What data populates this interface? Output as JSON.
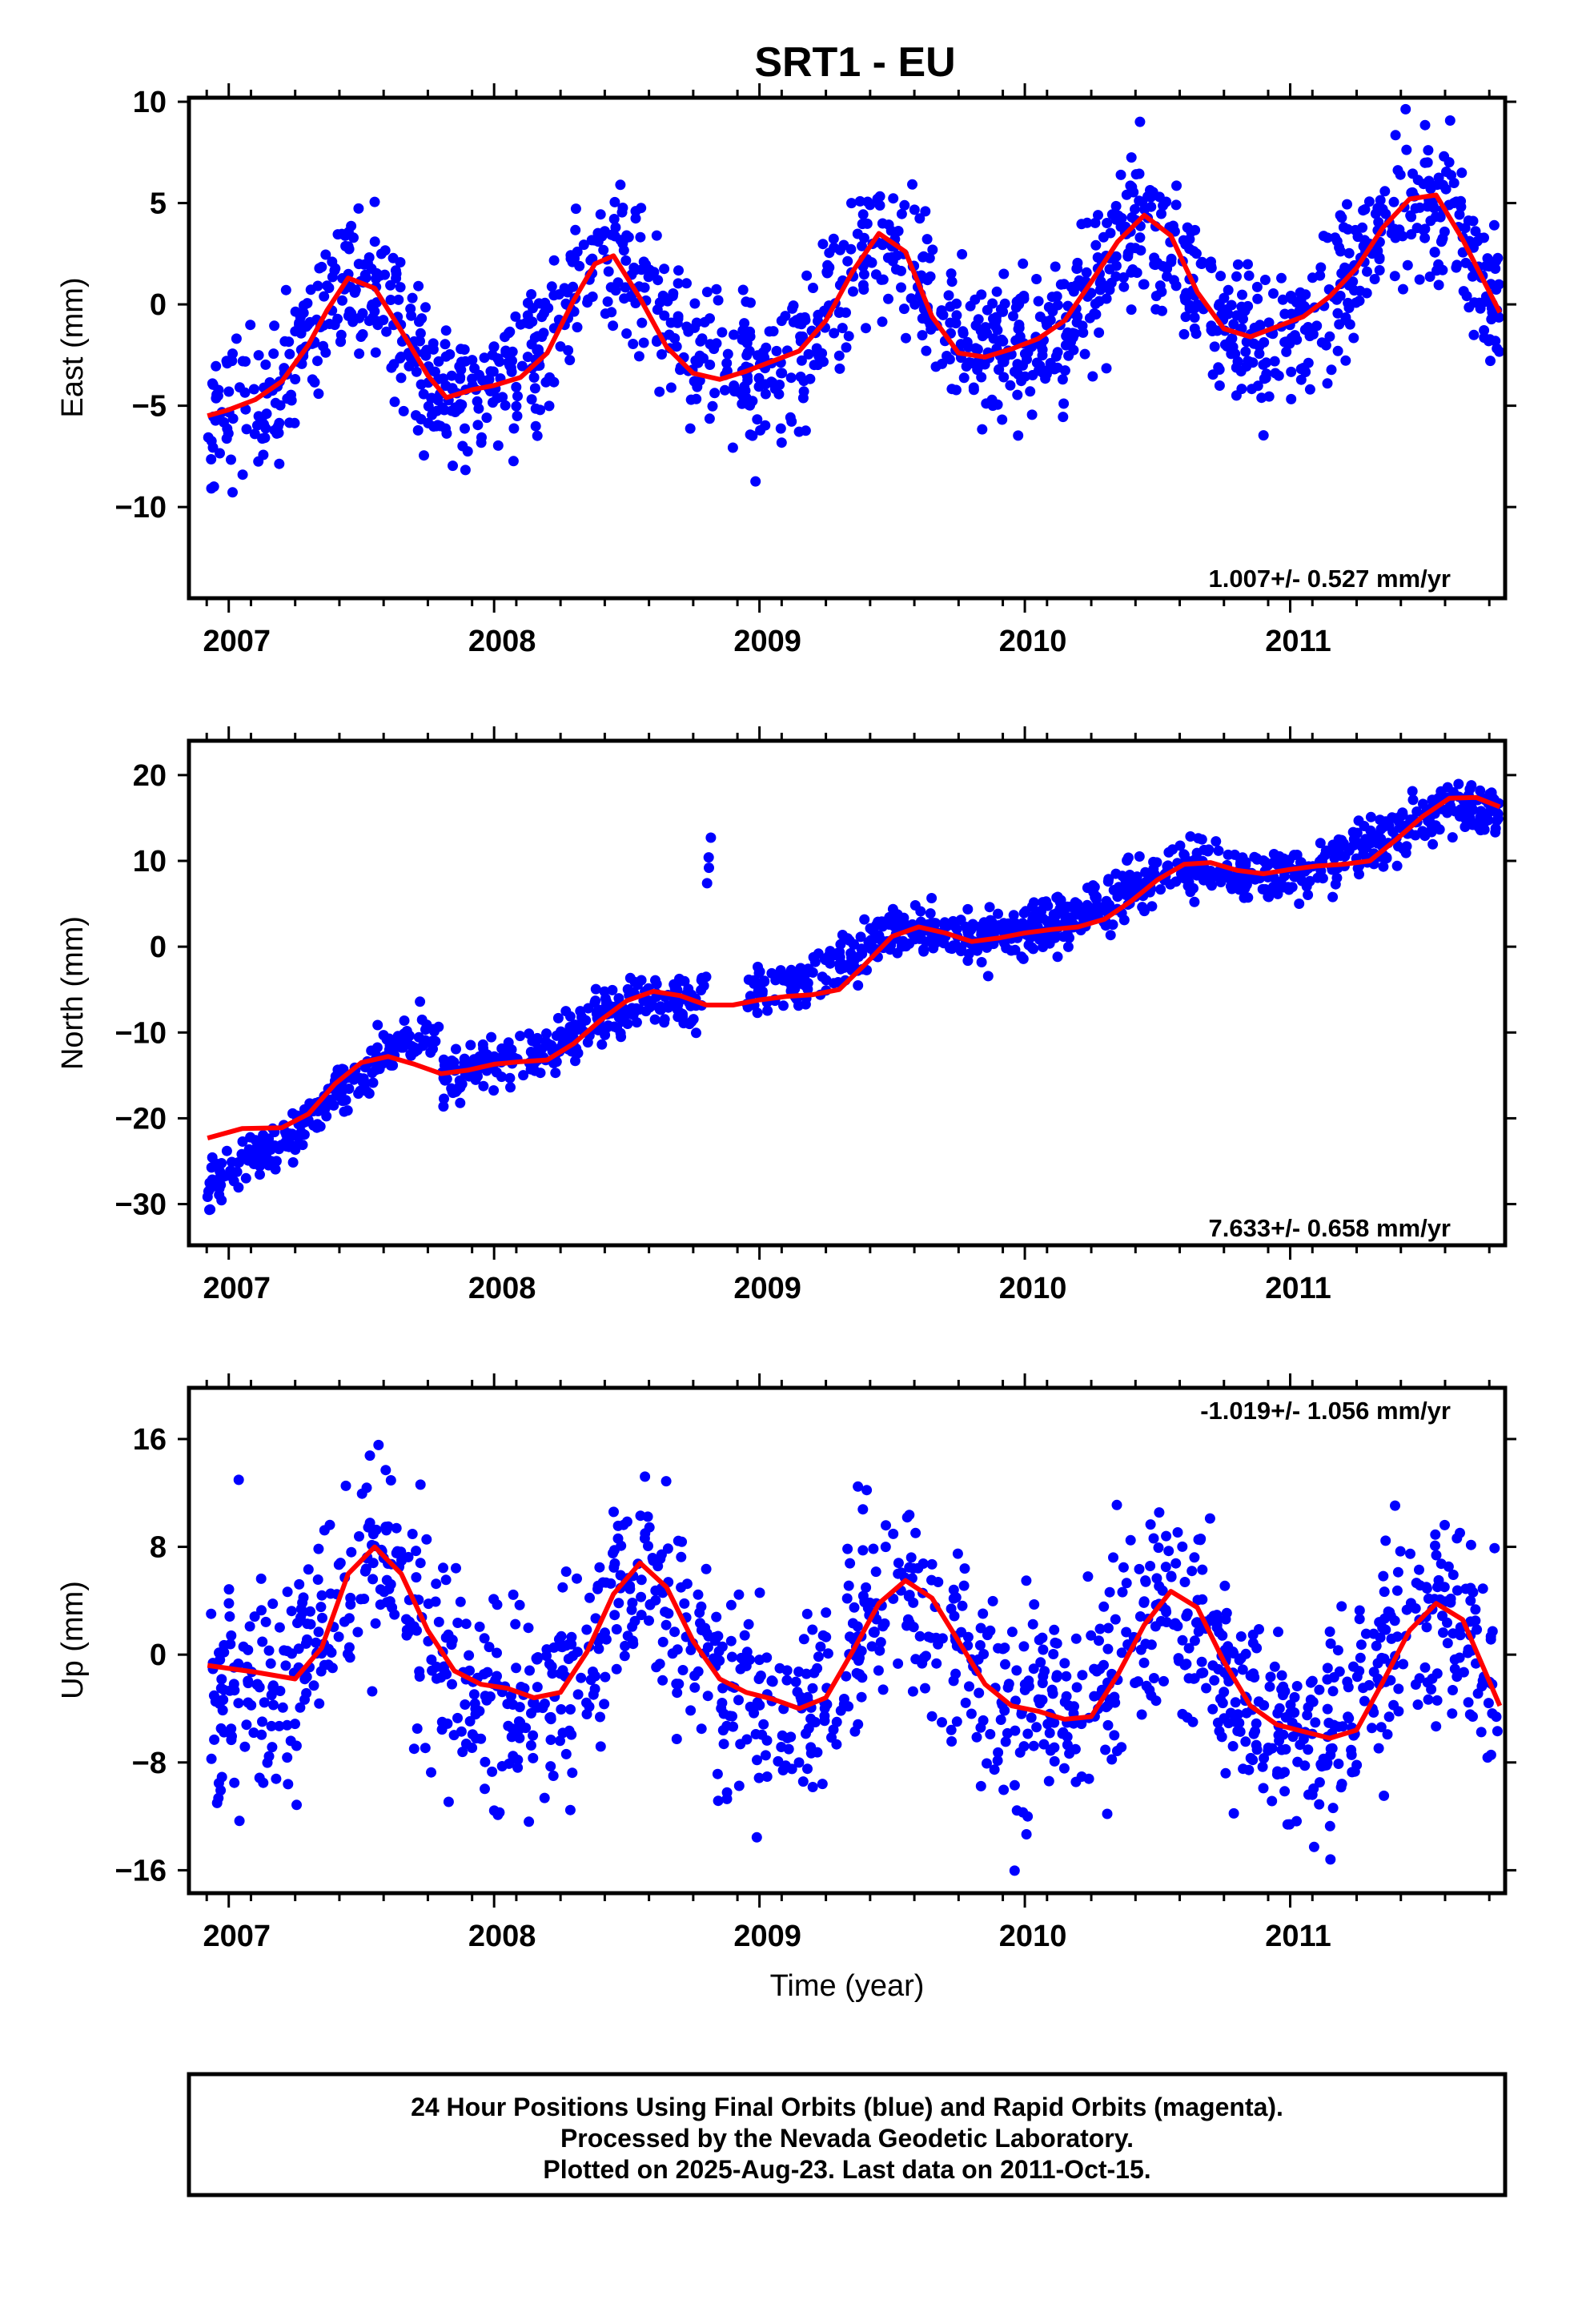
{
  "title": "SRT1 - EU",
  "xlabel": "Time (year)",
  "footer": {
    "line1": "24 Hour Positions Using Final Orbits (blue) and Rapid Orbits (magenta).",
    "line2": "Processed by the Nevada Geodetic Laboratory.",
    "line3": "Plotted on 2025-Aug-23. Last data on 2011-Oct-15."
  },
  "colors": {
    "points": "#0000ff",
    "model": "#ff0000",
    "frame": "#000000"
  },
  "chart_data": [
    {
      "type": "scatter",
      "ylabel": "East (mm)",
      "rate": "1.007+/- 0.527 mm/yr",
      "xlim": [
        2006.85,
        2011.81
      ],
      "ylim": [
        -14.5,
        10.2
      ],
      "yticks": [
        10,
        5,
        0,
        -5,
        -10
      ],
      "ytick_labels": [
        "10",
        "5",
        "0",
        "−5",
        "−10"
      ],
      "xticks": [
        2007,
        2008,
        2009,
        2010,
        2011
      ],
      "xtick_labels": [
        "2007",
        "2008",
        "2009",
        "2010",
        "2011"
      ],
      "data_span": [
        2006.92,
        2011.79
      ],
      "seasonal_segments": [
        {
          "x0": 2006.92,
          "x1": 2008.95,
          "y": [
            -4.0,
            -1.3,
            3.6
          ],
          "amp": 2.8
        },
        {
          "x0": 2008.95,
          "x1": 2010.0,
          "y": [
            -4.6,
            3.6
          ],
          "amp": 3.6
        },
        {
          "x0": 2010.0,
          "x1": 2011.79,
          "y": [
            -2.2,
            1.2
          ],
          "amp": 4.2
        }
      ],
      "noise": 1.8,
      "n_points": 1450,
      "model": {
        "x": [
          2006.92,
          2007.0,
          2007.1,
          2007.2,
          2007.3,
          2007.37,
          2007.45,
          2007.55,
          2007.65,
          2007.75,
          2007.82,
          2007.92,
          2008.0,
          2008.1,
          2008.2,
          2008.3,
          2008.38,
          2008.45,
          2008.55,
          2008.65,
          2008.75,
          2008.85,
          2008.95,
          2009.05,
          2009.15,
          2009.25,
          2009.35,
          2009.45,
          2009.55,
          2009.65,
          2009.75,
          2009.85,
          2009.95,
          2010.05,
          2010.15,
          2010.25,
          2010.35,
          2010.45,
          2010.55,
          2010.65,
          2010.75,
          2010.85,
          2010.95,
          2011.05,
          2011.15,
          2011.25,
          2011.35,
          2011.45,
          2011.55,
          2011.65,
          2011.79
        ],
        "y": [
          -5.5,
          -5.2,
          -4.7,
          -3.8,
          -2.0,
          -0.3,
          1.3,
          0.8,
          -1.3,
          -3.5,
          -4.6,
          -4.2,
          -4.0,
          -3.6,
          -2.4,
          0.2,
          2.0,
          2.4,
          0.3,
          -2.1,
          -3.4,
          -3.7,
          -3.3,
          -2.8,
          -2.3,
          -0.8,
          1.6,
          3.5,
          2.6,
          -0.6,
          -2.4,
          -2.6,
          -2.2,
          -1.7,
          -0.8,
          1.1,
          3.1,
          4.4,
          3.4,
          0.6,
          -1.2,
          -1.6,
          -1.1,
          -0.6,
          0.4,
          1.8,
          3.8,
          5.2,
          5.4,
          3.2,
          -0.4
        ]
      }
    },
    {
      "type": "scatter",
      "ylabel": "North (mm)",
      "rate": "7.633+/- 0.658 mm/yr",
      "xlim": [
        2006.85,
        2011.81
      ],
      "ylim": [
        -34.8,
        24.0
      ],
      "yticks": [
        20,
        10,
        0,
        -10,
        -20,
        -30
      ],
      "ytick_labels": [
        "20",
        "10",
        "0",
        "−10",
        "−20",
        "−30"
      ],
      "xticks": [
        2007,
        2008,
        2009,
        2010,
        2011
      ],
      "xtick_labels": [
        "2007",
        "2008",
        "2009",
        "2010",
        "2011"
      ],
      "data_span": [
        2006.92,
        2011.79
      ],
      "seasonal_segments": [
        {
          "x0": 2006.92,
          "x1": 2007.8,
          "y": [
            -32.5,
            -6.0
          ],
          "amp": 0.0
        },
        {
          "x0": 2007.8,
          "x1": 2008.8,
          "y": [
            -14.5,
            -5.5
          ],
          "amp": 1.0
        },
        {
          "x0": 2008.95,
          "x1": 2011.79,
          "y": [
            -3.0,
            15.0
          ],
          "amp": 2.0
        }
      ],
      "noise": 1.5,
      "n_points": 1400,
      "model": {
        "x": [
          2006.92,
          2007.05,
          2007.2,
          2007.3,
          2007.4,
          2007.5,
          2007.6,
          2007.7,
          2007.8,
          2007.9,
          2008.0,
          2008.1,
          2008.2,
          2008.3,
          2008.4,
          2008.5,
          2008.6,
          2008.7,
          2008.8,
          2008.9,
          2009.0,
          2009.1,
          2009.2,
          2009.3,
          2009.4,
          2009.5,
          2009.6,
          2009.7,
          2009.8,
          2009.9,
          2010.0,
          2010.1,
          2010.2,
          2010.3,
          2010.4,
          2010.5,
          2010.6,
          2010.7,
          2010.8,
          2010.9,
          2011.0,
          2011.1,
          2011.2,
          2011.3,
          2011.4,
          2011.5,
          2011.6,
          2011.7,
          2011.79
        ],
        "y": [
          -22.3,
          -21.2,
          -21.1,
          -19.5,
          -16.0,
          -13.5,
          -12.8,
          -13.7,
          -14.8,
          -14.4,
          -13.7,
          -13.4,
          -13.2,
          -11.3,
          -8.6,
          -6.3,
          -5.2,
          -5.7,
          -6.8,
          -6.8,
          -6.2,
          -5.8,
          -5.6,
          -5.0,
          -2.0,
          1.2,
          2.3,
          1.6,
          0.6,
          1.0,
          1.6,
          2.0,
          2.3,
          3.2,
          5.3,
          7.8,
          9.6,
          9.8,
          8.9,
          8.5,
          9.0,
          9.4,
          9.6,
          10.0,
          12.5,
          15.2,
          17.3,
          17.4,
          16.3
        ]
      }
    },
    {
      "type": "scatter",
      "ylabel": "Up (mm)",
      "rate": "-1.019+/- 1.056 mm/yr",
      "xlim": [
        2006.85,
        2011.81
      ],
      "ylim": [
        -17.7,
        19.8
      ],
      "yticks": [
        16,
        8,
        0,
        -8,
        -16
      ],
      "ytick_labels": [
        "16",
        "8",
        "0",
        "−8",
        "−16"
      ],
      "xticks": [
        2007,
        2008,
        2009,
        2010,
        2011
      ],
      "xtick_labels": [
        "2007",
        "2008",
        "2009",
        "2010",
        "2011"
      ],
      "data_span": [
        2006.92,
        2011.79
      ],
      "seasonal_segments": [
        {
          "x0": 2006.92,
          "x1": 2011.79,
          "y": [
            -1.5,
            -2.5
          ],
          "amp": 5.5
        }
      ],
      "noise": 4.0,
      "n_points": 1350,
      "model": {
        "x": [
          2006.92,
          2007.1,
          2007.25,
          2007.35,
          2007.45,
          2007.55,
          2007.65,
          2007.75,
          2007.85,
          2007.95,
          2008.05,
          2008.15,
          2008.25,
          2008.35,
          2008.45,
          2008.55,
          2008.65,
          2008.75,
          2008.85,
          2008.95,
          2009.05,
          2009.15,
          2009.25,
          2009.35,
          2009.45,
          2009.55,
          2009.65,
          2009.75,
          2009.85,
          2009.95,
          2010.05,
          2010.15,
          2010.25,
          2010.35,
          2010.45,
          2010.55,
          2010.65,
          2010.75,
          2010.85,
          2010.95,
          2011.05,
          2011.15,
          2011.25,
          2011.35,
          2011.45,
          2011.55,
          2011.65,
          2011.79
        ],
        "y": [
          -0.8,
          -1.3,
          -1.8,
          0.5,
          6.0,
          8.0,
          6.0,
          1.8,
          -1.2,
          -2.2,
          -2.5,
          -3.2,
          -2.8,
          0.2,
          4.5,
          6.8,
          5.0,
          1.0,
          -1.8,
          -2.8,
          -3.3,
          -4.0,
          -3.2,
          0.2,
          3.8,
          5.5,
          4.2,
          1.0,
          -2.2,
          -3.8,
          -4.2,
          -4.8,
          -4.6,
          -1.5,
          2.2,
          4.7,
          3.5,
          -0.5,
          -3.8,
          -5.2,
          -5.7,
          -6.2,
          -5.6,
          -2.0,
          1.8,
          3.8,
          2.6,
          -3.8
        ]
      }
    }
  ]
}
